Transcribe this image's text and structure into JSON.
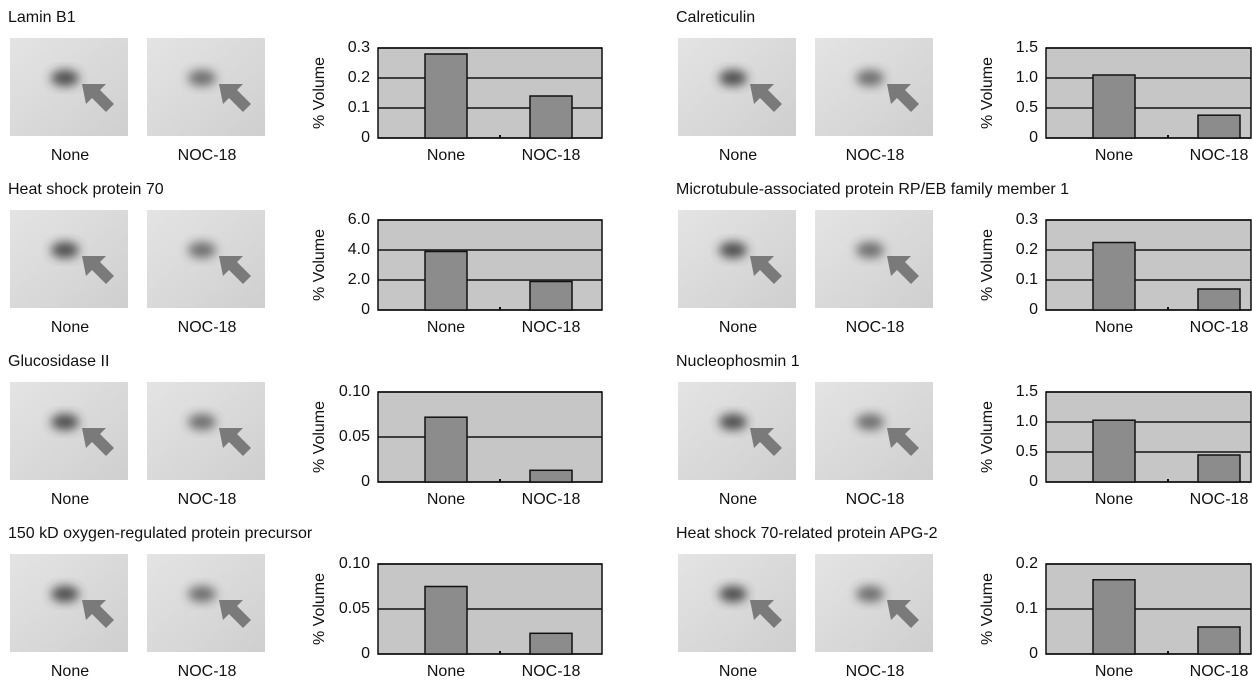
{
  "chart_data": [
    {
      "type": "bar",
      "title": "Lamin B1",
      "image_labels": [
        "None",
        "NOC-18"
      ],
      "categories": [
        "None",
        "NOC-18"
      ],
      "values": [
        0.28,
        0.14
      ],
      "ylabel": "% Volume",
      "ylim": [
        0,
        0.3
      ],
      "yticks": [
        0,
        0.1,
        0.2,
        0.3
      ],
      "grid": true,
      "color": "#8c8c8c"
    },
    {
      "type": "bar",
      "title": "Heat shock protein 70",
      "image_labels": [
        "None",
        "NOC-18"
      ],
      "categories": [
        "None",
        "NOC-18"
      ],
      "values": [
        3.9,
        1.9
      ],
      "ylabel": "% Volume",
      "ylim": [
        0,
        6
      ],
      "yticks": [
        0,
        {
          "value": 2,
          "label": "2.0"
        },
        {
          "value": 4,
          "label": "4.0"
        },
        {
          "value": 6,
          "label": "6.0"
        }
      ],
      "grid": true,
      "color": "#8c8c8c"
    },
    {
      "type": "bar",
      "title": "Glucosidase II",
      "image_labels": [
        "None",
        "NOC-18"
      ],
      "categories": [
        "None",
        "NOC-18"
      ],
      "values": [
        0.072,
        0.013
      ],
      "ylabel": "% Volume",
      "ylim": [
        0,
        0.1
      ],
      "yticks": [
        0,
        0.05,
        {
          "value": 0.1,
          "label": "0.10"
        }
      ],
      "grid": true,
      "color": "#8c8c8c"
    },
    {
      "type": "bar",
      "title": "150 kD oxygen-regulated protein precursor",
      "image_labels": [
        "None",
        "NOC-18"
      ],
      "categories": [
        "None",
        "NOC-18"
      ],
      "values": [
        0.075,
        0.023
      ],
      "ylabel": "% Volume",
      "ylim": [
        0,
        0.1
      ],
      "yticks": [
        0,
        0.05,
        {
          "value": 0.1,
          "label": "0.10"
        }
      ],
      "grid": true,
      "color": "#8c8c8c"
    },
    {
      "type": "bar",
      "title": "Calreticulin",
      "image_labels": [
        "None",
        "NOC-18"
      ],
      "categories": [
        "None",
        "NOC-18"
      ],
      "values": [
        1.05,
        0.38
      ],
      "ylabel": "% Volume",
      "ylim": [
        0,
        1.5
      ],
      "yticks": [
        0,
        0.5,
        {
          "value": 1,
          "label": "1.0"
        },
        1.5
      ],
      "grid": true,
      "color": "#8c8c8c"
    },
    {
      "type": "bar",
      "title": "Microtubule-associated protein RP/EB family member 1",
      "image_labels": [
        "None",
        "NOC-18"
      ],
      "categories": [
        "None",
        "NOC-18"
      ],
      "values": [
        0.225,
        0.07
      ],
      "ylabel": "% Volume",
      "ylim": [
        0,
        0.3
      ],
      "yticks": [
        0,
        0.1,
        0.2,
        0.3
      ],
      "grid": true,
      "color": "#8c8c8c"
    },
    {
      "type": "bar",
      "title": "Nucleophosmin 1",
      "image_labels": [
        "None",
        "NOC-18"
      ],
      "categories": [
        "None",
        "NOC-18"
      ],
      "values": [
        1.03,
        0.45
      ],
      "ylabel": "% Volume",
      "ylim": [
        0,
        1.5
      ],
      "yticks": [
        0,
        0.5,
        {
          "value": 1,
          "label": "1.0"
        },
        1.5
      ],
      "grid": true,
      "color": "#8c8c8c"
    },
    {
      "type": "bar",
      "title": "Heat shock 70-related protein APG-2",
      "image_labels": [
        "None",
        "NOC-18"
      ],
      "categories": [
        "None",
        "NOC-18"
      ],
      "values": [
        0.165,
        0.06
      ],
      "ylabel": "% Volume",
      "ylim": [
        0,
        0.2
      ],
      "yticks": [
        0,
        0.1,
        0.2
      ],
      "grid": true,
      "color": "#8c8c8c"
    }
  ]
}
